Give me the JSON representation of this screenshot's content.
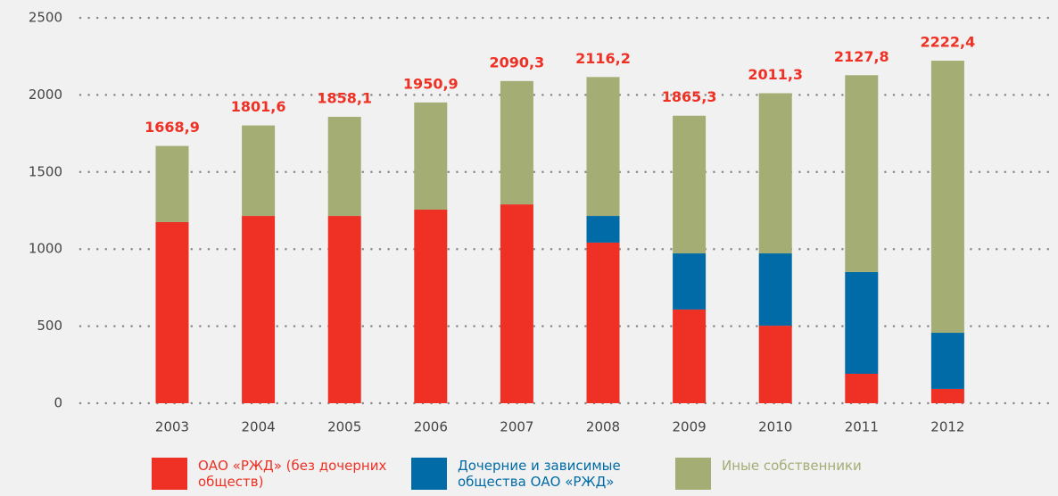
{
  "chart_data": {
    "type": "stacked_bar",
    "categories": [
      "2003",
      "2004",
      "2005",
      "2006",
      "2007",
      "2008",
      "2009",
      "2010",
      "2011",
      "2012"
    ],
    "series": [
      {
        "name": "ОАО «РЖД» (без дочерних обществ)",
        "color": "#ee3124",
        "values": [
          1175,
          1215,
          1215,
          1256,
          1290,
          1042,
          608,
          503,
          191,
          93
        ]
      },
      {
        "name": "Дочерние и зависимые общества ОАО «РЖД»",
        "color": "#006ba6",
        "values": [
          0,
          0,
          0,
          0,
          0,
          173,
          364,
          469,
          660,
          364
        ]
      },
      {
        "name": "Иные собственники",
        "color": "#a3ad74",
        "values": [
          494,
          587,
          643,
          695,
          800,
          901,
          893,
          1039,
          1277,
          1765
        ]
      }
    ],
    "totals": [
      1668.9,
      1801.6,
      1858.1,
      1950.9,
      2090.3,
      2116.2,
      1865.3,
      2011.3,
      2127.8,
      2222.4
    ],
    "total_labels": [
      "1668,9",
      "1801,6",
      "1858,1",
      "1950,9",
      "2090,3",
      "2116,2",
      "1865,3",
      "2011,3",
      "2127,8",
      "2222,4"
    ],
    "ylim": [
      0,
      2500
    ],
    "yticks": [
      0,
      500,
      1000,
      1500,
      2000,
      2500
    ],
    "grid": true
  }
}
